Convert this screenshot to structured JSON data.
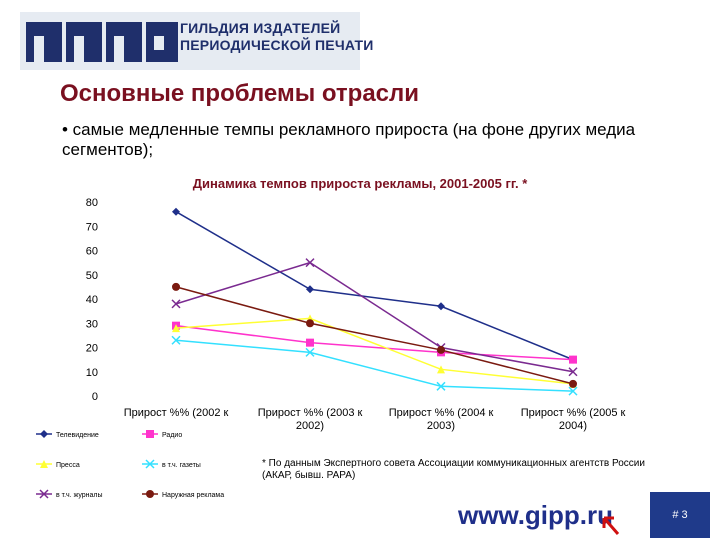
{
  "header": {
    "org_line1": "ГИЛЬДИЯ ИЗДАТЕЛЕЙ",
    "org_line2": "ПЕРИОДИЧЕСКОЙ ПЕЧАТИ"
  },
  "slide": {
    "title": "Основные проблемы отрасли",
    "bullet": "• самые медленные темпы рекламного прироста (на фоне других медиа сегментов);",
    "footnote": "* По данным Экспертного совета Ассоциации коммуникационных агентств России (АКАР, бывш. РАРА)",
    "url": "www.gipp.ru",
    "slide_number": "# 3"
  },
  "chart_data": {
    "type": "line",
    "title": "Динамика темпов прироста рекламы, 2001-2005 гг. *",
    "categories": [
      "Прирост %% (2002 к",
      "Прирост %% (2003 к 2002)",
      "Прирост %% (2004 к 2003)",
      "Прирост %% (2005 к 2004)"
    ],
    "ylim": [
      0,
      80
    ],
    "yticks": [
      0,
      10,
      20,
      30,
      40,
      50,
      60,
      70,
      80
    ],
    "series": [
      {
        "name": "Телевидение",
        "color": "#1f2f8a",
        "marker": "diamond",
        "values": [
          76,
          44,
          37,
          15
        ]
      },
      {
        "name": "Радио",
        "color": "#ff33cc",
        "marker": "square",
        "values": [
          29,
          22,
          18,
          15
        ]
      },
      {
        "name": "Пресса",
        "color": "#ffff33",
        "marker": "triangle",
        "values": [
          28,
          32,
          11,
          5
        ]
      },
      {
        "name": "в т.ч. газеты",
        "color": "#33e0ff",
        "marker": "x",
        "values": [
          23,
          18,
          4,
          2
        ]
      },
      {
        "name": "в т.ч. журналы",
        "color": "#7a2a90",
        "marker": "x",
        "values": [
          38,
          55,
          20,
          10
        ]
      },
      {
        "name": "Наружная реклама",
        "color": "#7a1a10",
        "marker": "circle",
        "values": [
          45,
          30,
          19,
          5
        ]
      }
    ]
  }
}
